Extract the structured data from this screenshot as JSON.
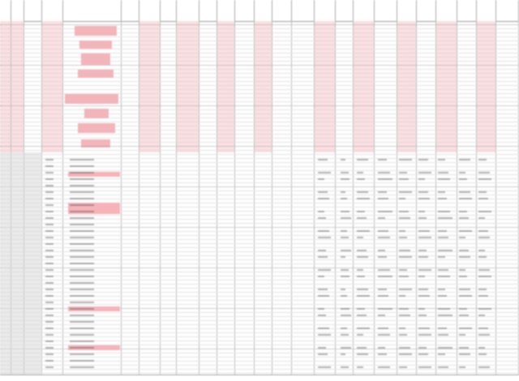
{
  "sheet": {
    "name": "spreadsheet",
    "colors": {
      "highlight": "#f6b3b8",
      "highlight_light": "#fbe0e2",
      "grey": "#d9d9d9",
      "grid": "#bbbbbb"
    }
  },
  "columns": [
    {
      "label": "",
      "w": 0
    },
    {
      "label": "",
      "w": 0
    }
  ]
}
